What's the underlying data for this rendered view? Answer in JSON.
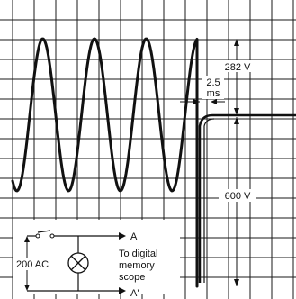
{
  "labels": {
    "peak_voltage": "282 V",
    "interval_value": "2.5",
    "interval_unit": "ms",
    "step_voltage": "600 V",
    "source_voltage": "200 AC",
    "node_a": "A",
    "node_a_prime": "A'",
    "scope_line1": "To digital",
    "scope_line2": "memory",
    "scope_line3": "scope"
  },
  "colors": {
    "grid": "#1a1a1a",
    "trace": "#111111",
    "background": "#ffffff"
  }
}
